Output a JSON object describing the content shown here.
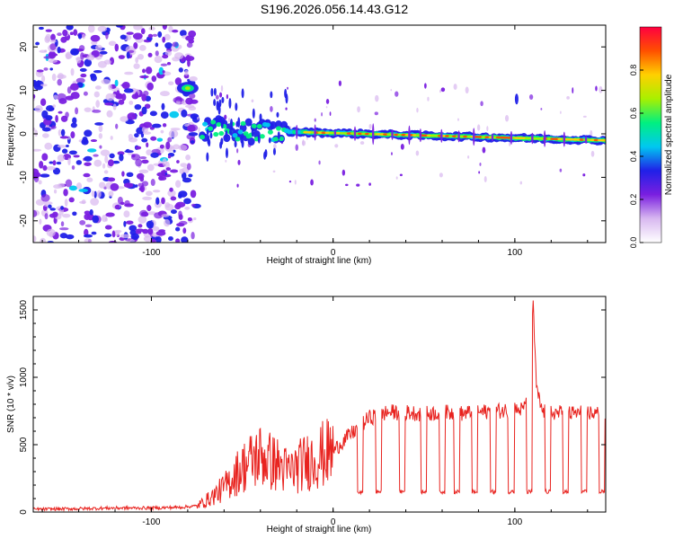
{
  "title": "S196.2026.056.14.43.G12",
  "chart_data": [
    {
      "type": "heatmap",
      "title": "S196.2026.056.14.43.G12",
      "xlabel": "Height of straight line (km)",
      "ylabel": "Frequency (Hz)",
      "xlim": [
        -165,
        150
      ],
      "ylim": [
        -25,
        25
      ],
      "xticks": [
        -100,
        0,
        100
      ],
      "yticks": [
        -20,
        -10,
        0,
        10,
        20
      ],
      "colorbar": {
        "label": "Normalized spectral amplitude",
        "range": [
          0,
          1
        ],
        "ticks": [
          0.0,
          0.2,
          0.4,
          0.6,
          0.8
        ],
        "tick_labels": [
          "0.0",
          "0.2",
          "0.4",
          "0.6",
          "0.8"
        ],
        "colormap": "rainbow",
        "colors": [
          "#ffffff",
          "#d8b8f0",
          "#7a1fe0",
          "#2020e8",
          "#00c8f0",
          "#00f080",
          "#a8f000",
          "#ffd000",
          "#ff5000",
          "#ff0040"
        ]
      },
      "features": [
        {
          "name": "noise",
          "x_range": [
            -165,
            -75
          ],
          "y_range": [
            -25,
            25
          ],
          "amplitude": 0.25
        },
        {
          "name": "tone-near-10hz",
          "x": -80,
          "y": 10.5,
          "amplitude": 0.55
        },
        {
          "name": "carrier-line",
          "x_range": [
            -72,
            150
          ],
          "y_start": 1.0,
          "y_end": -1.5,
          "amplitude": 0.85
        }
      ]
    },
    {
      "type": "line",
      "xlabel": "Height of straight line (km)",
      "ylabel": "SNR (10 * v/v)",
      "xlim": [
        -165,
        150
      ],
      "ylim": [
        0,
        1600
      ],
      "xticks": [
        -100,
        0,
        100
      ],
      "yticks": [
        0,
        500,
        1000,
        1500
      ],
      "line_color": "#e8231f",
      "series": [
        {
          "name": "SNR",
          "x": [
            -165,
            -140,
            -120,
            -100,
            -85,
            -75,
            -68,
            -60,
            -55,
            -50,
            -45,
            -40,
            -35,
            -30,
            -25,
            -20,
            -15,
            -10,
            -5,
            0,
            5,
            10,
            15,
            20,
            25,
            30,
            40,
            50,
            60,
            70,
            80,
            90,
            100,
            105,
            108,
            110,
            112,
            115,
            120,
            130,
            140,
            150
          ],
          "values": [
            20,
            25,
            30,
            30,
            35,
            45,
            100,
            180,
            260,
            330,
            380,
            420,
            380,
            350,
            300,
            330,
            370,
            400,
            430,
            450,
            520,
            580,
            640,
            700,
            720,
            740,
            740,
            730,
            740,
            730,
            740,
            750,
            760,
            760,
            980,
            1550,
            900,
            750,
            740,
            730,
            740,
            720
          ]
        }
      ],
      "dropouts_x": [
        15,
        25,
        38,
        50,
        60,
        68,
        78,
        88,
        98,
        108,
        118,
        128,
        138,
        148
      ],
      "dropout_level": 150
    }
  ]
}
